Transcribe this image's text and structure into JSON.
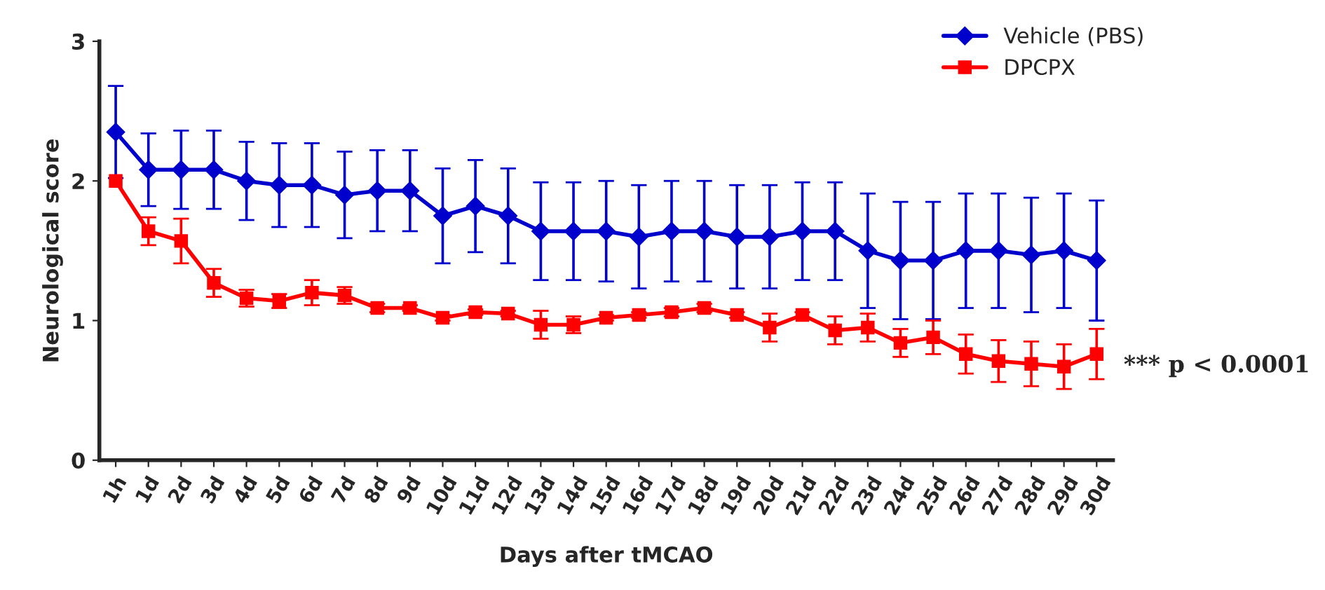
{
  "chart_data": {
    "type": "line",
    "xlabel": "Days after tMCAO",
    "ylabel": "Neurological score",
    "categories": [
      "1h",
      "1d",
      "2d",
      "3d",
      "4d",
      "5d",
      "6d",
      "7d",
      "8d",
      "9d",
      "10d",
      "11d",
      "12d",
      "13d",
      "14d",
      "15d",
      "16d",
      "17d",
      "18d",
      "19d",
      "20d",
      "21d",
      "22d",
      "23d",
      "24d",
      "25d",
      "26d",
      "27d",
      "28d",
      "29d",
      "30d"
    ],
    "series": [
      {
        "name": "Vehicle (PBS)",
        "color": "#0000cc",
        "marker": "diamond",
        "values": [
          2.35,
          2.08,
          2.08,
          2.08,
          2.0,
          1.97,
          1.97,
          1.9,
          1.93,
          1.93,
          1.75,
          1.82,
          1.75,
          1.64,
          1.64,
          1.64,
          1.6,
          1.64,
          1.64,
          1.6,
          1.6,
          1.64,
          1.64,
          1.5,
          1.43,
          1.43,
          1.5,
          1.5,
          1.47,
          1.5,
          1.43
        ],
        "errors": [
          0.33,
          0.26,
          0.28,
          0.28,
          0.28,
          0.3,
          0.3,
          0.31,
          0.29,
          0.29,
          0.34,
          0.33,
          0.34,
          0.35,
          0.35,
          0.36,
          0.37,
          0.36,
          0.36,
          0.37,
          0.37,
          0.35,
          0.35,
          0.41,
          0.42,
          0.42,
          0.41,
          0.41,
          0.41,
          0.41,
          0.43
        ]
      },
      {
        "name": "DPCPX",
        "color": "#ff0000",
        "marker": "square",
        "values": [
          2.0,
          1.64,
          1.57,
          1.27,
          1.16,
          1.14,
          1.2,
          1.18,
          1.09,
          1.09,
          1.02,
          1.06,
          1.05,
          0.97,
          0.97,
          1.02,
          1.04,
          1.06,
          1.09,
          1.04,
          0.95,
          1.04,
          0.93,
          0.95,
          0.84,
          0.88,
          0.76,
          0.71,
          0.69,
          0.67,
          0.76
        ],
        "errors": [
          null,
          0.1,
          0.16,
          0.1,
          0.06,
          0.05,
          0.09,
          0.06,
          0.03,
          0.02,
          0.02,
          0.02,
          0.02,
          0.1,
          0.06,
          0.02,
          0.02,
          0.03,
          0.03,
          0.02,
          0.1,
          0.02,
          0.1,
          0.1,
          0.1,
          0.12,
          0.14,
          0.15,
          0.16,
          0.16,
          0.18
        ]
      }
    ],
    "ylim": [
      0,
      3
    ],
    "yticks": [
      0,
      1,
      2,
      3
    ],
    "grid": false,
    "legend": "top right",
    "annotations": [
      "*** p < 0.0001"
    ]
  }
}
